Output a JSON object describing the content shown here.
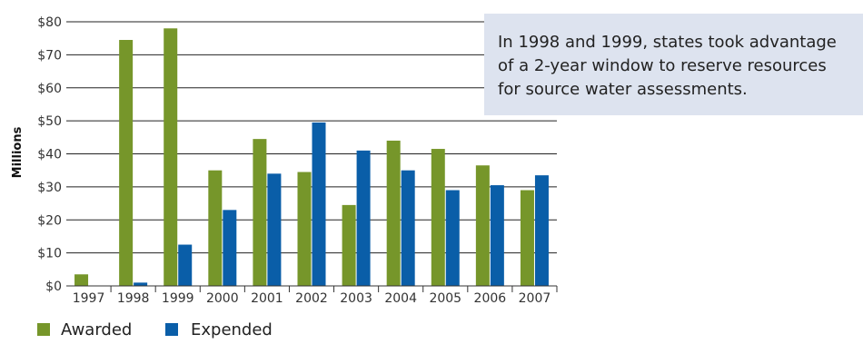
{
  "chart_data": {
    "type": "bar",
    "categories": [
      "1997",
      "1998",
      "1999",
      "2000",
      "2001",
      "2002",
      "2003",
      "2004",
      "2005",
      "2006",
      "2007"
    ],
    "series": [
      {
        "name": "Awarded",
        "color": "#76962a",
        "values": [
          3.5,
          74.5,
          78,
          35,
          44.5,
          34.5,
          24.5,
          44,
          41.5,
          36.5,
          29
        ]
      },
      {
        "name": "Expended",
        "color": "#0a5ea8",
        "values": [
          0,
          1,
          12.5,
          23,
          34,
          49.5,
          41,
          35,
          29,
          30.5,
          33.5
        ]
      }
    ],
    "ylabel": "Millions",
    "ylim": [
      0,
      80
    ],
    "yticks": [
      "$0",
      "$10",
      "$20",
      "$30",
      "$40",
      "$50",
      "$60",
      "$70",
      "$80"
    ],
    "grid": true,
    "legend_position": "bottom-left",
    "annotation": {
      "lines": [
        "In 1998 and 1999, states took advantage",
        "of a 2-year window to reserve resources",
        "for source water assessments."
      ],
      "background": "#dde3ef"
    }
  }
}
